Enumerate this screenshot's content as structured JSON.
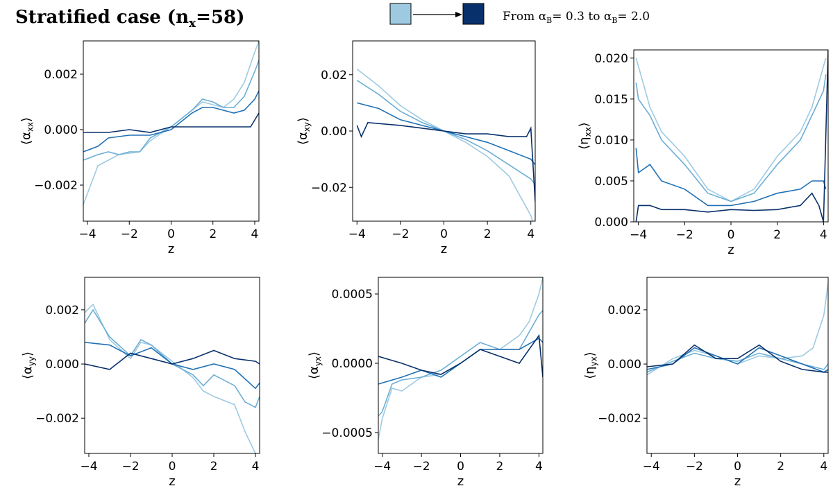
{
  "figure": {
    "title": {
      "main": "Stratified case (n",
      "sub": "x",
      "rest": "=58)"
    },
    "legend": {
      "from_color": "#9ecae1",
      "to_color": "#08306b",
      "label_prefix": "From ",
      "alpha_symbol": "α",
      "alpha_sub": "B",
      "first_value": "= 0.3",
      "connector": " to ",
      "second_value": "= 2.0"
    }
  },
  "chart_data": [
    {
      "type": "line",
      "xlabel": "z",
      "ylabel": {
        "sym": "α",
        "sub": "xx"
      },
      "xlim": [
        -4.2,
        4.2
      ],
      "ylim": [
        -0.0033,
        0.0032
      ],
      "xticks": [
        -4,
        -2,
        0,
        2,
        4
      ],
      "xtick_labels": [
        "−4",
        "−2",
        "0",
        "2",
        "4"
      ],
      "yticks": [
        -0.002,
        0,
        0.002
      ],
      "ytick_labels": [
        "−0.002",
        "0.000",
        "0.002"
      ],
      "series": [
        {
          "color": "#9ecae1",
          "x": [
            -4.2,
            -3.5,
            -2.5,
            -1.5,
            -1,
            0,
            0.5,
            1,
            1.5,
            2,
            2.5,
            3,
            3.5,
            4,
            4.2
          ],
          "y": [
            -0.0027,
            -0.0013,
            -0.0009,
            -0.0008,
            -0.0004,
            0.0001,
            0.0004,
            0.0007,
            0.001,
            0.0009,
            0.0008,
            0.0011,
            0.0017,
            0.0028,
            0.0032
          ]
        },
        {
          "color": "#6baed6",
          "x": [
            -4.2,
            -3.5,
            -3,
            -2.5,
            -2,
            -1.5,
            -1,
            0,
            0.5,
            1,
            1.5,
            2,
            2.5,
            3,
            3.5,
            4,
            4.2
          ],
          "y": [
            -0.0011,
            -0.0009,
            -0.0008,
            -0.0009,
            -0.0008,
            -0.0008,
            -0.0003,
            0.0001,
            0.0004,
            0.0007,
            0.0011,
            0.001,
            0.0008,
            0.0008,
            0.0012,
            0.0021,
            0.0025
          ]
        },
        {
          "color": "#2171b5",
          "x": [
            -4.2,
            -3.5,
            -3,
            -2,
            -1,
            0,
            0.5,
            1,
            1.5,
            2,
            3,
            3.5,
            4,
            4.2
          ],
          "y": [
            -0.0008,
            -0.0006,
            -0.0003,
            -0.0002,
            -0.0002,
            0,
            0.0003,
            0.0006,
            0.0008,
            0.0008,
            0.0006,
            0.0007,
            0.0011,
            0.0014
          ]
        },
        {
          "color": "#08306b",
          "x": [
            -4.2,
            -3,
            -2,
            -1,
            0,
            1,
            2,
            3,
            3.8,
            4.2
          ],
          "y": [
            -0.0001,
            -0.0001,
            0,
            -0.0001,
            0.0001,
            0.0001,
            0.0001,
            0.0001,
            0.0001,
            0.0006
          ]
        }
      ]
    },
    {
      "type": "line",
      "xlabel": "z",
      "ylabel": {
        "sym": "α",
        "sub": "xy"
      },
      "xlim": [
        -4.2,
        4.2
      ],
      "ylim": [
        -0.032,
        0.032
      ],
      "xticks": [
        -4,
        -2,
        0,
        2,
        4
      ],
      "xtick_labels": [
        "−4",
        "−2",
        "0",
        "2",
        "4"
      ],
      "yticks": [
        -0.02,
        0,
        0.02
      ],
      "ytick_labels": [
        "−0.02",
        "0.00",
        "0.02"
      ],
      "series": [
        {
          "color": "#9ecae1",
          "x": [
            -4,
            -3,
            -2,
            -1,
            0,
            1,
            2,
            3,
            4,
            4.2
          ],
          "y": [
            0.022,
            0.016,
            0.009,
            0.004,
            0,
            -0.004,
            -0.009,
            -0.016,
            -0.03,
            -0.035
          ]
        },
        {
          "color": "#6baed6",
          "x": [
            -4,
            -3,
            -2,
            -1,
            0,
            1,
            2,
            3,
            4,
            4.2
          ],
          "y": [
            0.018,
            0.013,
            0.007,
            0.003,
            0,
            -0.003,
            -0.007,
            -0.012,
            -0.017,
            -0.019
          ]
        },
        {
          "color": "#2171b5",
          "x": [
            -4,
            -3,
            -2,
            -1,
            0,
            1,
            2,
            3,
            4,
            4.2
          ],
          "y": [
            0.01,
            0.008,
            0.004,
            0.002,
            0,
            -0.002,
            -0.004,
            -0.007,
            -0.01,
            -0.012
          ]
        },
        {
          "color": "#08306b",
          "x": [
            -4,
            -3.8,
            -3.5,
            -2,
            -1,
            0,
            1,
            2,
            3,
            3.8,
            4,
            4.2
          ],
          "y": [
            0.002,
            -0.002,
            0.003,
            0.002,
            0.001,
            0,
            -0.001,
            -0.001,
            -0.002,
            -0.002,
            0.001,
            -0.025
          ]
        }
      ]
    },
    {
      "type": "line",
      "xlabel": "z",
      "ylabel": {
        "sym": "η",
        "sub": "xx"
      },
      "xlim": [
        -4.2,
        4.2
      ],
      "ylim": [
        0,
        0.021
      ],
      "xticks": [
        -4,
        -2,
        0,
        2,
        4
      ],
      "xtick_labels": [
        "−4",
        "−2",
        "0",
        "2",
        "4"
      ],
      "yticks": [
        0,
        0.005,
        0.01,
        0.015,
        0.02
      ],
      "ytick_labels": [
        "0.000",
        "0.005",
        "0.010",
        "0.015",
        "0.020"
      ],
      "series": [
        {
          "color": "#9ecae1",
          "x": [
            -4.1,
            -4,
            -3.5,
            -3,
            -2,
            -1,
            0,
            1,
            2,
            3,
            3.5,
            4,
            4.1
          ],
          "y": [
            0.02,
            0.019,
            0.014,
            0.011,
            0.008,
            0.004,
            0.0025,
            0.004,
            0.008,
            0.011,
            0.014,
            0.019,
            0.02
          ]
        },
        {
          "color": "#6baed6",
          "x": [
            -4.1,
            -4,
            -3.5,
            -3,
            -2,
            -1,
            0,
            1,
            2,
            3,
            3.5,
            4,
            4.1
          ],
          "y": [
            0.017,
            0.015,
            0.013,
            0.01,
            0.007,
            0.0035,
            0.0025,
            0.0035,
            0.007,
            0.01,
            0.013,
            0.016,
            0.018
          ]
        },
        {
          "color": "#2171b5",
          "x": [
            -4.1,
            -4,
            -3.5,
            -3,
            -2,
            -1,
            0,
            1,
            2,
            3,
            3.5,
            4,
            4.1
          ],
          "y": [
            0.009,
            0.006,
            0.007,
            0.005,
            0.004,
            0.002,
            0.002,
            0.0025,
            0.0035,
            0.004,
            0.005,
            0.005,
            0.004
          ]
        },
        {
          "color": "#08306b",
          "x": [
            -4.1,
            -4,
            -3.5,
            -3,
            -2,
            -1,
            0,
            1,
            2,
            3,
            3.5,
            3.8,
            4,
            4.2
          ],
          "y": [
            0,
            0.002,
            0.002,
            0.0015,
            0.0015,
            0.0012,
            0.0015,
            0.0014,
            0.0015,
            0.002,
            0.0035,
            0.002,
            0,
            0.021
          ]
        }
      ]
    },
    {
      "type": "line",
      "xlabel": "z",
      "ylabel": {
        "sym": "α",
        "sub": "yy"
      },
      "xlim": [
        -4.2,
        4.2
      ],
      "ylim": [
        -0.0033,
        0.0032
      ],
      "xticks": [
        -4,
        -2,
        0,
        2,
        4
      ],
      "xtick_labels": [
        "−4",
        "−2",
        "0",
        "2",
        "4"
      ],
      "yticks": [
        -0.002,
        0,
        0.002
      ],
      "ytick_labels": [
        "−0.002",
        "0.000",
        "0.002"
      ],
      "series": [
        {
          "color": "#9ecae1",
          "x": [
            -4.2,
            -3.8,
            -3,
            -2,
            -1.5,
            -1,
            0,
            1,
            1.5,
            2,
            3,
            3.5,
            4,
            4.2
          ],
          "y": [
            0.0019,
            0.0022,
            0.0009,
            0.0002,
            0.0008,
            0.0007,
            0.0001,
            -0.0005,
            -0.001,
            -0.0012,
            -0.0015,
            -0.0025,
            -0.0033,
            -0.0036
          ]
        },
        {
          "color": "#6baed6",
          "x": [
            -4.2,
            -3.8,
            -3,
            -2,
            -1.5,
            -1,
            0,
            1,
            1.5,
            2,
            3,
            3.5,
            4,
            4.2
          ],
          "y": [
            0.0015,
            0.002,
            0.001,
            0.0003,
            0.0009,
            0.0007,
            0,
            -0.0004,
            -0.0008,
            -0.0004,
            -0.0008,
            -0.0014,
            -0.0016,
            -0.0012
          ]
        },
        {
          "color": "#2171b5",
          "x": [
            -4.2,
            -3,
            -2,
            -1,
            0,
            1,
            2,
            3,
            4,
            4.2
          ],
          "y": [
            0.0008,
            0.0007,
            0.0003,
            0.0006,
            0,
            -0.0002,
            0,
            -0.0002,
            -0.0009,
            -0.0007
          ]
        },
        {
          "color": "#08306b",
          "x": [
            -4.2,
            -3,
            -2,
            -1,
            0,
            1,
            2,
            3,
            4,
            4.2
          ],
          "y": [
            0,
            -0.0002,
            0.0004,
            0.0002,
            0,
            0.0002,
            0.0005,
            0.0002,
            0.0001,
            0
          ]
        }
      ]
    },
    {
      "type": "line",
      "xlabel": "z",
      "ylabel": {
        "sym": "α",
        "sub": "yx"
      },
      "xlim": [
        -4.2,
        4.2
      ],
      "ylim": [
        -0.00065,
        0.00062
      ],
      "xticks": [
        -4,
        -2,
        0,
        2,
        4
      ],
      "xtick_labels": [
        "−4",
        "−2",
        "0",
        "2",
        "4"
      ],
      "yticks": [
        -0.0005,
        0,
        0.0005
      ],
      "ytick_labels": [
        "−0.0005",
        "0.0000",
        "0.0005"
      ],
      "series": [
        {
          "color": "#9ecae1",
          "x": [
            -4.2,
            -4,
            -3.5,
            -3,
            -2,
            -1,
            0,
            1,
            2,
            3,
            3.5,
            4,
            4.2
          ],
          "y": [
            -0.00055,
            -0.0004,
            -0.00018,
            -0.0002,
            -0.0001,
            -8e-05,
            0,
            0.0001,
            0.0001,
            0.0002,
            0.0003,
            0.0005,
            0.00062
          ]
        },
        {
          "color": "#6baed6",
          "x": [
            -4.2,
            -4,
            -3.5,
            -3,
            -2,
            -1,
            0,
            1,
            2,
            3,
            4,
            4.2
          ],
          "y": [
            -0.00038,
            -0.00035,
            -0.00015,
            -0.00012,
            -0.0001,
            -5e-05,
            5e-05,
            0.00015,
            0.0001,
            0.0001,
            0.00035,
            0.00038
          ]
        },
        {
          "color": "#2171b5",
          "x": [
            -4.2,
            -3,
            -2,
            -1,
            0,
            1,
            2,
            3,
            4,
            4.2
          ],
          "y": [
            -0.00015,
            -0.0001,
            -5e-05,
            -0.0001,
            0,
            0.0001,
            0.0001,
            0.0001,
            0.00018,
            0.00015
          ]
        },
        {
          "color": "#08306b",
          "x": [
            -4.2,
            -3,
            -2,
            -1,
            0,
            1,
            2,
            3,
            4,
            4.2
          ],
          "y": [
            5e-05,
            0,
            -5e-05,
            -8e-05,
            0,
            0.0001,
            5e-05,
            0,
            0.0002,
            -0.0001
          ]
        }
      ]
    },
    {
      "type": "line",
      "xlabel": "z",
      "ylabel": {
        "sym": "η",
        "sub": "yx"
      },
      "xlim": [
        -4.2,
        4.2
      ],
      "ylim": [
        -0.0033,
        0.0032
      ],
      "xticks": [
        -4,
        -2,
        0,
        2,
        4
      ],
      "xtick_labels": [
        "−4",
        "−2",
        "0",
        "2",
        "4"
      ],
      "yticks": [
        -0.002,
        0,
        0.002
      ],
      "ytick_labels": [
        "−0.002",
        "0.000",
        "0.002"
      ],
      "series": [
        {
          "color": "#9ecae1",
          "x": [
            -4.2,
            -3,
            -2,
            -1,
            0,
            1,
            2,
            3,
            3.5,
            4,
            4.2
          ],
          "y": [
            -0.0004,
            0.0002,
            0.0005,
            0.0003,
            0,
            0.0003,
            0.0002,
            0.0003,
            0.0006,
            0.0018,
            0.003
          ]
        },
        {
          "color": "#6baed6",
          "x": [
            -4.2,
            -3,
            -2,
            -1,
            0,
            1,
            2,
            3,
            4,
            4.2
          ],
          "y": [
            -0.0003,
            0.0001,
            0.0004,
            0.0002,
            0.0001,
            0.0004,
            0.0002,
            0,
            -0.0002,
            0
          ]
        },
        {
          "color": "#2171b5",
          "x": [
            -4.2,
            -3,
            -2,
            -1,
            0,
            1,
            2,
            3,
            4,
            4.2
          ],
          "y": [
            -0.0002,
            0,
            0.0006,
            0.0003,
            0,
            0.0006,
            0.0003,
            0,
            -0.0003,
            -0.0002
          ]
        },
        {
          "color": "#08306b",
          "x": [
            -4.2,
            -3,
            -2,
            -1,
            0,
            1,
            2,
            3,
            4,
            4.2
          ],
          "y": [
            -0.0001,
            0,
            0.0007,
            0.0002,
            0.0002,
            0.0007,
            0.0001,
            -0.0002,
            -0.0003,
            -0.0003
          ]
        }
      ]
    }
  ]
}
